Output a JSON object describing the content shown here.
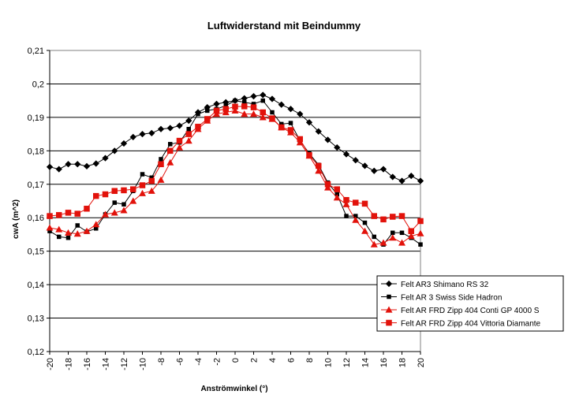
{
  "chart_data": {
    "type": "line",
    "title": "Luftwiderstand mit Beindummy",
    "xlabel": "Anströmwinkel (°)",
    "ylabel": "cwA (m^2)",
    "xlim": [
      -20,
      20
    ],
    "ylim": [
      0.12,
      0.21
    ],
    "x_ticks": [
      -20,
      -18,
      -16,
      -14,
      -12,
      -10,
      -8,
      -6,
      -4,
      -2,
      0,
      2,
      4,
      6,
      8,
      10,
      12,
      14,
      16,
      18,
      20
    ],
    "x_tick_labels": [
      "-20",
      "-18",
      "-16",
      "-14",
      "-12",
      "-10",
      "-8",
      "-6",
      "-4",
      "-2",
      "0",
      "2",
      "4",
      "6",
      "8",
      "10",
      "12",
      "14",
      "16",
      "18",
      "20"
    ],
    "y_ticks": [
      0.12,
      0.13,
      0.14,
      0.15,
      0.16,
      0.17,
      0.18,
      0.19,
      0.2,
      0.21
    ],
    "y_tick_labels": [
      "0,12",
      "0,13",
      "0,14",
      "0,15",
      "0,16",
      "0,17",
      "0,18",
      "0,19",
      "0,2",
      "0,21"
    ],
    "grid": "horizontal",
    "legend_position": "bottom-right",
    "series": [
      {
        "name": "Felt AR3 Shimano RS 32",
        "color": "#000000",
        "marker": "diamond",
        "x": [
          -20,
          -19,
          -18,
          -17,
          -16,
          -15,
          -14,
          -13,
          -12,
          -11,
          -10,
          -9,
          -8,
          -7,
          -6,
          -5,
          -4,
          -3,
          -2,
          -1,
          0,
          1,
          2,
          3,
          4,
          5,
          6,
          7,
          8,
          9,
          10,
          11,
          12,
          13,
          14,
          15,
          16,
          17,
          18,
          19,
          20
        ],
        "values": [
          0.1752,
          0.1745,
          0.176,
          0.176,
          0.1754,
          0.1762,
          0.1778,
          0.18,
          0.1822,
          0.1841,
          0.185,
          0.1853,
          0.1865,
          0.1868,
          0.1875,
          0.189,
          0.1915,
          0.193,
          0.194,
          0.1945,
          0.195,
          0.1957,
          0.1963,
          0.1967,
          0.1955,
          0.1938,
          0.1925,
          0.191,
          0.1885,
          0.1858,
          0.1833,
          0.181,
          0.179,
          0.1772,
          0.1755,
          0.174,
          0.1745,
          0.1722,
          0.171,
          0.1725,
          0.171
        ]
      },
      {
        "name": "Felt AR 3 Swiss Side Hadron",
        "color": "#000000",
        "marker": "square",
        "x": [
          -20,
          -19,
          -18,
          -17,
          -16,
          -15,
          -14,
          -13,
          -12,
          -11,
          -10,
          -9,
          -8,
          -7,
          -6,
          -5,
          -4,
          -3,
          -2,
          -1,
          0,
          1,
          2,
          3,
          4,
          5,
          6,
          7,
          8,
          9,
          10,
          11,
          12,
          13,
          14,
          15,
          16,
          17,
          18,
          19,
          20
        ],
        "values": [
          0.156,
          0.1543,
          0.154,
          0.1577,
          0.1558,
          0.1568,
          0.161,
          0.1645,
          0.164,
          0.168,
          0.173,
          0.172,
          0.1775,
          0.182,
          0.1825,
          0.1865,
          0.191,
          0.192,
          0.1925,
          0.1935,
          0.195,
          0.1945,
          0.194,
          0.195,
          0.1915,
          0.188,
          0.1883,
          0.183,
          0.1792,
          0.1758,
          0.1705,
          0.167,
          0.1605,
          0.1605,
          0.1585,
          0.1543,
          0.152,
          0.1555,
          0.1555,
          0.154,
          0.152
        ]
      },
      {
        "name": "Felt AR FRD Zipp 404 Conti GP 4000 S",
        "color": "#e2120b",
        "marker": "triangle",
        "x": [
          -20,
          -19,
          -18,
          -17,
          -16,
          -15,
          -14,
          -13,
          -12,
          -11,
          -10,
          -9,
          -8,
          -7,
          -6,
          -5,
          -4,
          -3,
          -2,
          -1,
          0,
          1,
          2,
          3,
          4,
          5,
          6,
          7,
          8,
          9,
          10,
          11,
          12,
          13,
          14,
          15,
          16,
          17,
          18,
          19,
          20
        ],
        "values": [
          0.157,
          0.1565,
          0.1555,
          0.1552,
          0.156,
          0.158,
          0.161,
          0.1615,
          0.1622,
          0.165,
          0.1673,
          0.168,
          0.1713,
          0.1765,
          0.181,
          0.183,
          0.1865,
          0.189,
          0.191,
          0.1915,
          0.192,
          0.191,
          0.191,
          0.19,
          0.1895,
          0.187,
          0.1855,
          0.1825,
          0.1785,
          0.174,
          0.169,
          0.166,
          0.164,
          0.1593,
          0.156,
          0.152,
          0.1525,
          0.154,
          0.1525,
          0.1545,
          0.1553
        ]
      },
      {
        "name": "Felt AR FRD Zipp 404 Vittoria Diamante",
        "color": "#e2120b",
        "marker": "square",
        "x": [
          -20,
          -19,
          -18,
          -17,
          -16,
          -15,
          -14,
          -13,
          -12,
          -11,
          -10,
          -9,
          -8,
          -7,
          -6,
          -5,
          -4,
          -3,
          -2,
          -1,
          0,
          1,
          2,
          3,
          4,
          5,
          6,
          7,
          8,
          9,
          10,
          11,
          12,
          13,
          14,
          15,
          16,
          17,
          18,
          19,
          20
        ],
        "values": [
          0.1605,
          0.1608,
          0.1615,
          0.1612,
          0.1627,
          0.1665,
          0.167,
          0.168,
          0.1682,
          0.1685,
          0.1697,
          0.171,
          0.176,
          0.18,
          0.183,
          0.185,
          0.1872,
          0.1895,
          0.192,
          0.1925,
          0.1932,
          0.1933,
          0.193,
          0.1915,
          0.1897,
          0.187,
          0.1862,
          0.1835,
          0.1787,
          0.1755,
          0.17,
          0.1685,
          0.1653,
          0.1645,
          0.1642,
          0.1605,
          0.1595,
          0.1603,
          0.1605,
          0.156,
          0.159
        ]
      }
    ]
  }
}
